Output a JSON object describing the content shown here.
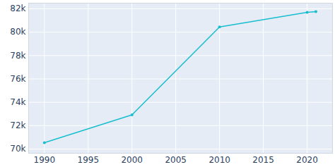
{
  "chart_data": {
    "type": "line",
    "x": [
      1990,
      2000,
      2010,
      2020,
      2021
    ],
    "values": [
      70540,
      72930,
      80450,
      81700,
      81760
    ],
    "color": "#17becf",
    "marker": "circle",
    "xlim": [
      1988.2,
      2022.9
    ],
    "xticks": [
      1990,
      1995,
      2000,
      2005,
      2010,
      2015,
      2020
    ],
    "ylim": [
      69640,
      82480
    ],
    "yticks": [
      {
        "value": 70000,
        "label": "70k"
      },
      {
        "value": 72000,
        "label": "72k"
      },
      {
        "value": 74000,
        "label": "74k"
      },
      {
        "value": 76000,
        "label": "76k"
      },
      {
        "value": 78000,
        "label": "78k"
      },
      {
        "value": 80000,
        "label": "80k"
      },
      {
        "value": 82000,
        "label": "82k"
      }
    ],
    "grid": true
  }
}
